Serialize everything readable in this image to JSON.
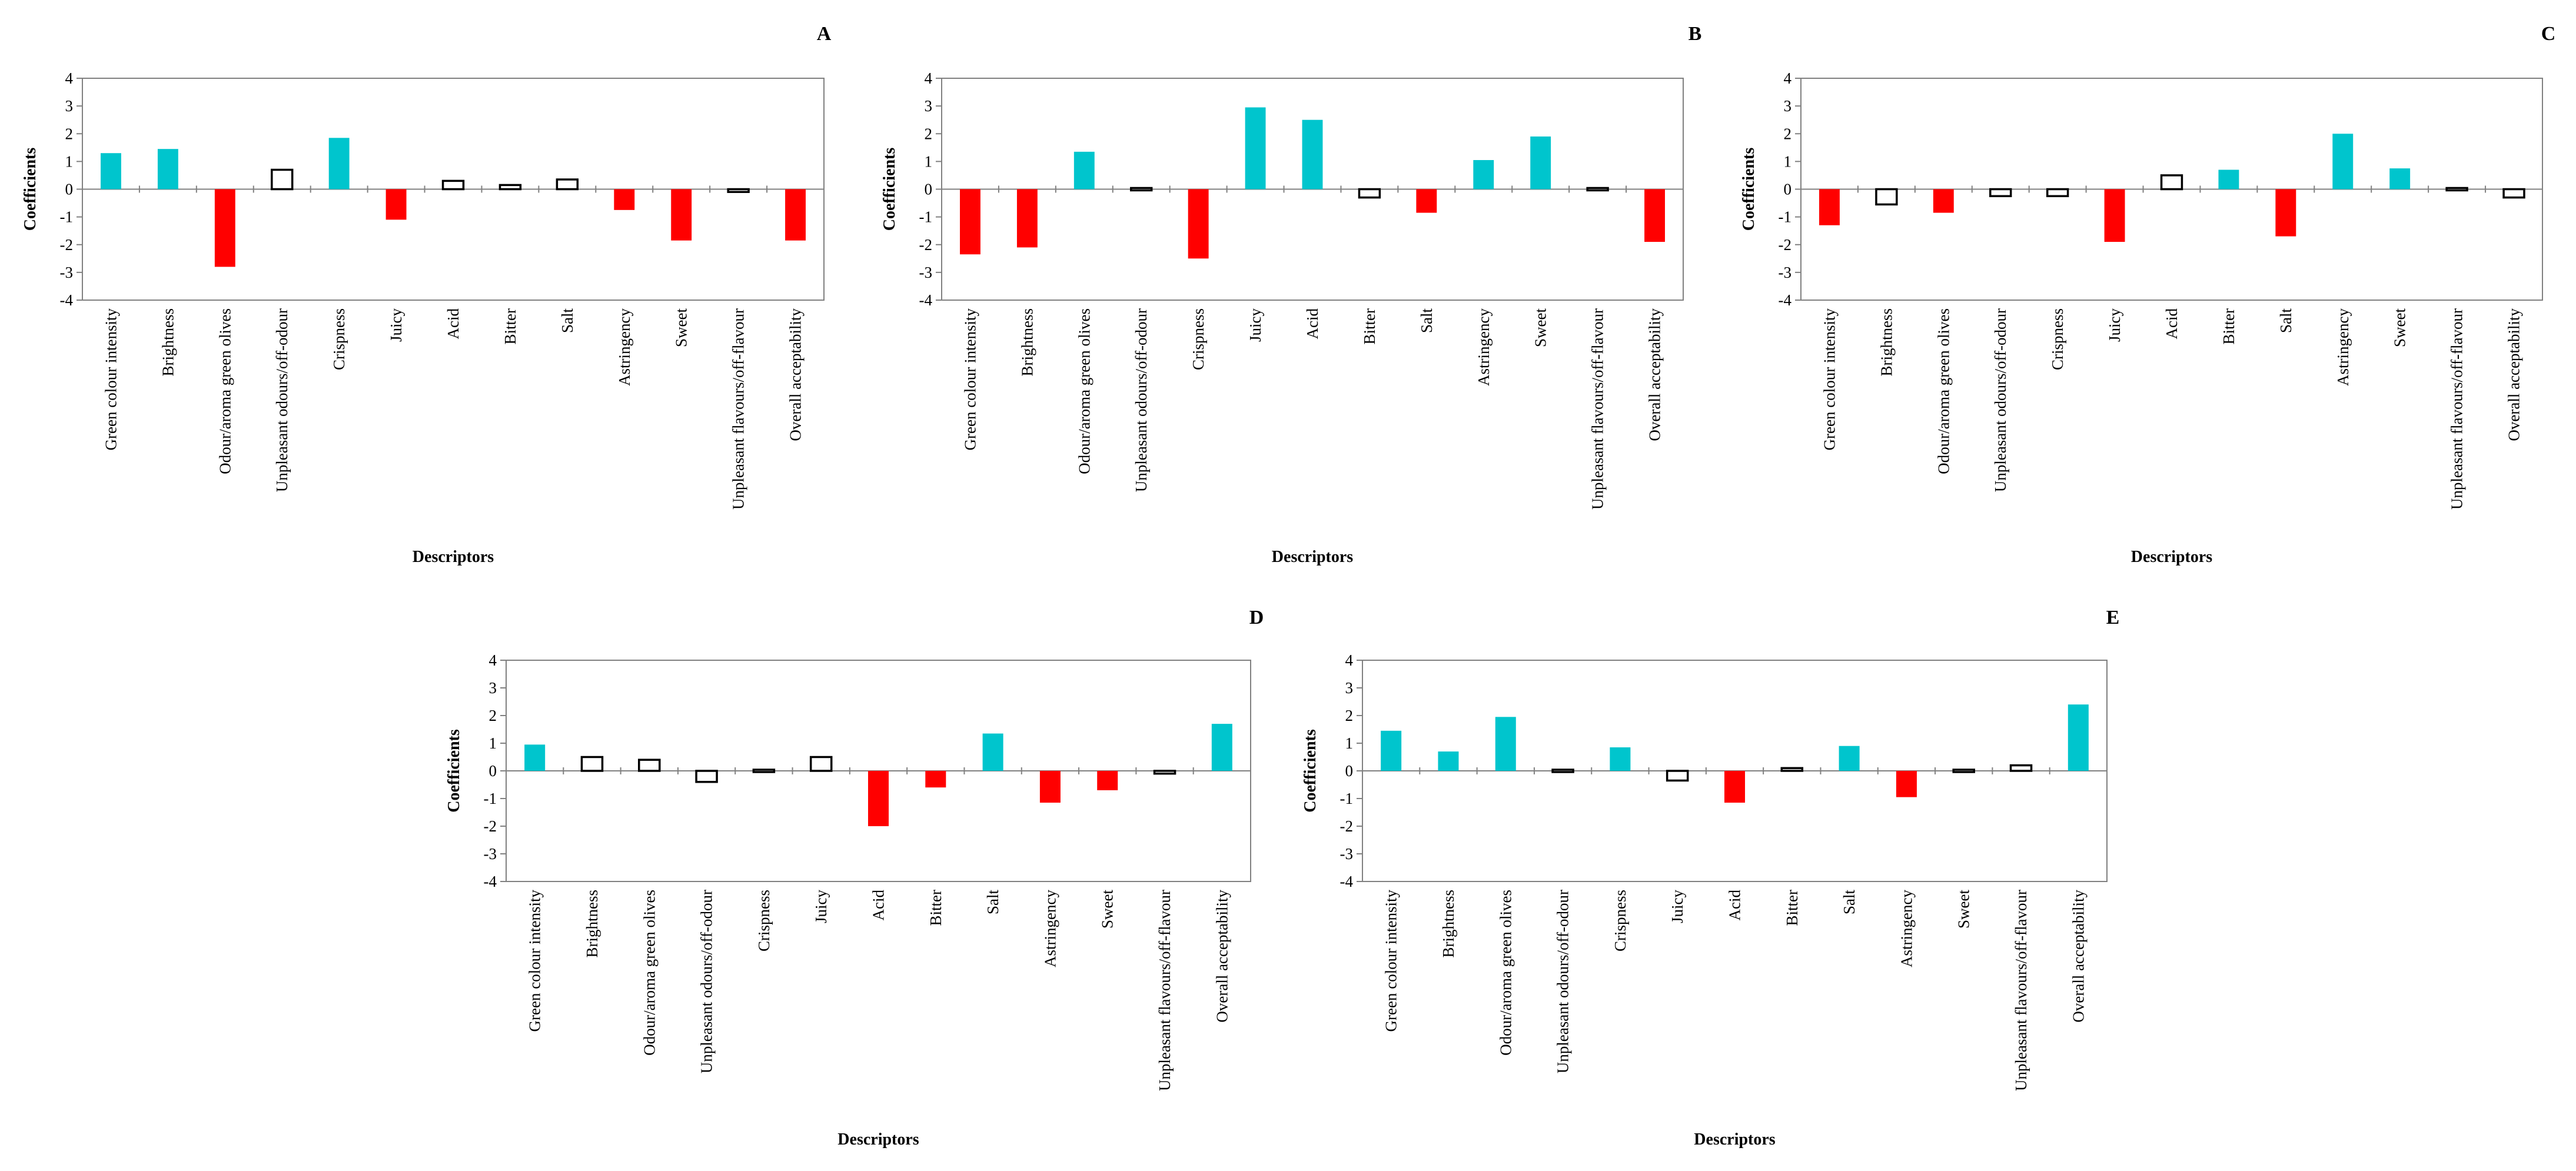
{
  "chart_data": [
    {
      "type": "bar",
      "panel": "A",
      "categories": [
        "Green colour intensity",
        "Brightness",
        "Odour/aroma green olives",
        "Unpleasant odours/off-odour",
        "Crispness",
        "Juicy",
        "Acid",
        "Bitter",
        "Salt",
        "Astringency",
        "Sweet",
        "Unpleasant flavours/off-flavour",
        "Overall acceptability"
      ],
      "values": [
        1.3,
        1.45,
        -2.8,
        0.7,
        1.85,
        -1.1,
        0.3,
        0.15,
        0.35,
        -0.75,
        -1.85,
        -0.1,
        -1.85
      ],
      "significance": [
        "pos",
        "pos",
        "neg",
        "ns",
        "pos",
        "neg",
        "ns",
        "ns",
        "ns",
        "neg",
        "neg",
        "ns",
        "neg"
      ],
      "xlabel": "Descriptors",
      "ylabel": "Coefficients",
      "ylim": [
        -4,
        4
      ],
      "yticks": [
        "4",
        "3",
        "2",
        "1",
        "0",
        "-1",
        "-2",
        "-3",
        "-4"
      ]
    },
    {
      "type": "bar",
      "panel": "B",
      "categories": [
        "Green colour intensity",
        "Brightness",
        "Odour/aroma green olives",
        "Unpleasant odours/off-odour",
        "Crispness",
        "Juicy",
        "Acid",
        "Bitter",
        "Salt",
        "Astringency",
        "Sweet",
        "Unpleasant flavours/off-flavour",
        "Overall acceptability"
      ],
      "values": [
        -2.35,
        -2.1,
        1.35,
        -0.05,
        -2.5,
        2.95,
        2.5,
        -0.3,
        -0.85,
        1.05,
        1.9,
        0.05,
        -1.9
      ],
      "significance": [
        "neg",
        "neg",
        "pos",
        "ns",
        "neg",
        "pos",
        "pos",
        "ns",
        "neg",
        "pos",
        "pos",
        "ns",
        "neg"
      ],
      "xlabel": "Descriptors",
      "ylabel": "Coefficients",
      "ylim": [
        -4,
        4
      ],
      "yticks": [
        "4",
        "3",
        "2",
        "1",
        "0",
        "-1",
        "-2",
        "-3",
        "-4"
      ]
    },
    {
      "type": "bar",
      "panel": "C",
      "categories": [
        "Green colour intensity",
        "Brightness",
        "Odour/aroma green olives",
        "Unpleasant odours/off-odour",
        "Crispness",
        "Juicy",
        "Acid",
        "Bitter",
        "Salt",
        "Astringency",
        "Sweet",
        "Unpleasant flavours/off-flavour",
        "Overall acceptability"
      ],
      "values": [
        -1.3,
        -0.55,
        -0.85,
        -0.25,
        -0.25,
        -1.9,
        0.5,
        0.7,
        -1.7,
        2.0,
        0.75,
        0.0,
        -0.3
      ],
      "significance": [
        "neg",
        "ns",
        "neg",
        "ns",
        "ns",
        "neg",
        "ns",
        "pos",
        "neg",
        "pos",
        "pos",
        "ns",
        "ns"
      ],
      "xlabel": "Descriptors",
      "ylabel": "Coefficients",
      "ylim": [
        -4,
        4
      ],
      "yticks": [
        "4",
        "3",
        "2",
        "1",
        "0",
        "-1",
        "-2",
        "-3",
        "-4"
      ]
    },
    {
      "type": "bar",
      "panel": "D",
      "categories": [
        "Green colour intensity",
        "Brightness",
        "Odour/aroma green olives",
        "Unpleasant odours/off-odour",
        "Crispness",
        "Juicy",
        "Acid",
        "Bitter",
        "Salt",
        "Astringency",
        "Sweet",
        "Unpleasant flavours/off-flavour",
        "Overall acceptability"
      ],
      "values": [
        0.95,
        0.5,
        0.4,
        -0.4,
        0.0,
        0.5,
        -2.0,
        -0.6,
        1.35,
        -1.15,
        -0.7,
        -0.1,
        1.7
      ],
      "significance": [
        "pos",
        "ns",
        "ns",
        "ns",
        "ns",
        "ns",
        "neg",
        "neg",
        "pos",
        "neg",
        "neg",
        "ns",
        "pos"
      ],
      "xlabel": "Descriptors",
      "ylabel": "Coefficients",
      "ylim": [
        -4,
        4
      ],
      "yticks": [
        "4",
        "3",
        "2",
        "1",
        "0",
        "-1",
        "-2",
        "-3",
        "-4"
      ]
    },
    {
      "type": "bar",
      "panel": "E",
      "categories": [
        "Green colour intensity",
        "Brightness",
        "Odour/aroma green olives",
        "Unpleasant odours/off-odour",
        "Crispness",
        "Juicy",
        "Acid",
        "Bitter",
        "Salt",
        "Astringency",
        "Sweet",
        "Unpleasant flavours/off-flavour",
        "Overall acceptability"
      ],
      "values": [
        1.45,
        0.7,
        1.95,
        -0.05,
        0.85,
        -0.35,
        -1.15,
        0.1,
        0.9,
        -0.95,
        -0.05,
        0.2,
        2.4
      ],
      "significance": [
        "pos",
        "pos",
        "pos",
        "ns",
        "pos",
        "ns",
        "neg",
        "ns",
        "pos",
        "neg",
        "ns",
        "ns",
        "pos"
      ],
      "xlabel": "Descriptors",
      "ylabel": "Coefficients",
      "ylim": [
        -4,
        4
      ],
      "yticks": [
        "4",
        "3",
        "2",
        "1",
        "0",
        "-1",
        "-2",
        "-3",
        "-4"
      ]
    }
  ],
  "colors": {
    "positive": "#00c5cd",
    "negative": "#ff0000",
    "not_significant_fill": "#ffffff",
    "not_significant_stroke": "#000000",
    "axis": "#808080"
  }
}
